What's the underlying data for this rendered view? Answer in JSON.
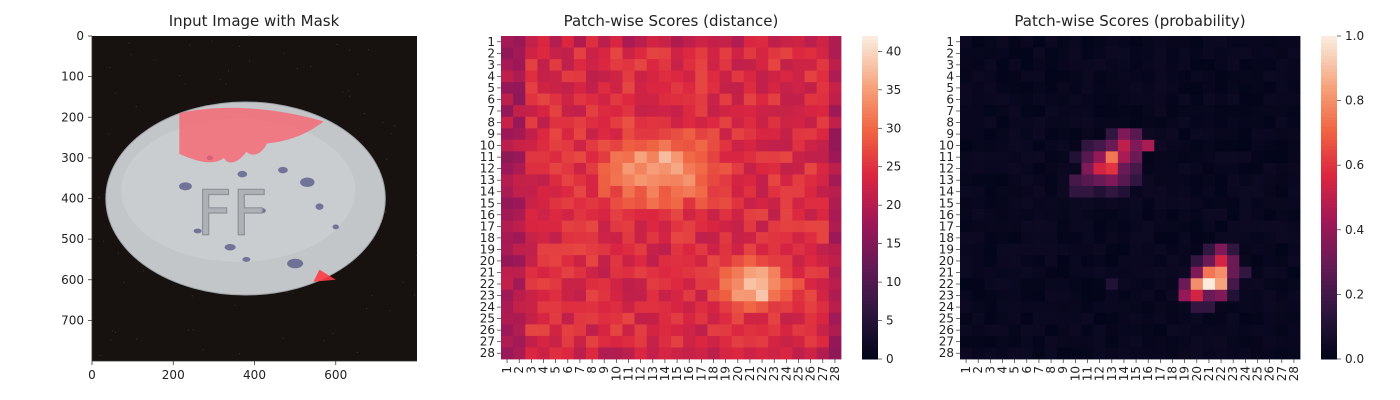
{
  "chart_data": [
    {
      "type": "image",
      "title": "Input Image with Mask",
      "x_ticks": [
        "0",
        "200",
        "400",
        "600"
      ],
      "y_ticks": [
        "0",
        "100",
        "200",
        "300",
        "400",
        "500",
        "600",
        "700"
      ],
      "x_tick_values": [
        0,
        200,
        400,
        600
      ],
      "y_tick_values": [
        0,
        100,
        200,
        300,
        400,
        500,
        600,
        700
      ],
      "xlim": [
        0,
        800
      ],
      "ylim": [
        800,
        0
      ],
      "stamp_text": "FF",
      "colors": {
        "background": "#17110f",
        "pill": "#c3c6c9",
        "mask": "#ff5a66"
      }
    },
    {
      "type": "heatmap",
      "title": "Patch-wise Scores (distance)",
      "rows": 28,
      "cols": 28,
      "row_labels": [
        "1",
        "2",
        "3",
        "4",
        "5",
        "6",
        "7",
        "8",
        "9",
        "10",
        "11",
        "12",
        "13",
        "14",
        "15",
        "16",
        "17",
        "18",
        "19",
        "20",
        "21",
        "22",
        "23",
        "24",
        "25",
        "26",
        "27",
        "28"
      ],
      "col_labels": [
        "1",
        "2",
        "3",
        "4",
        "5",
        "6",
        "7",
        "8",
        "9",
        "10",
        "11",
        "12",
        "13",
        "14",
        "15",
        "16",
        "17",
        "18",
        "19",
        "20",
        "21",
        "22",
        "23",
        "24",
        "25",
        "26",
        "27",
        "28"
      ],
      "colorbar": {
        "min": 0,
        "max": 42,
        "ticks": [
          "0",
          "5",
          "10",
          "15",
          "20",
          "25",
          "30",
          "35",
          "40"
        ],
        "tick_values": [
          0,
          5,
          10,
          15,
          20,
          25,
          30,
          35,
          40
        ],
        "colormap": "rocket"
      },
      "value_model": {
        "baseline": 24,
        "hotspots": [
          {
            "row": 12,
            "col": 13.5,
            "peak": 37,
            "spread_rows": 2.8,
            "spread_cols": 4.0
          },
          {
            "row": 22,
            "col": 21.5,
            "peak": 41,
            "spread_rows": 1.8,
            "spread_cols": 2.2
          }
        ],
        "cold_edges": {
          "left_cols": [
            1,
            2
          ],
          "right_col": 28,
          "value": 16
        }
      }
    },
    {
      "type": "heatmap",
      "title": "Patch-wise Scores (probability)",
      "rows": 28,
      "cols": 28,
      "row_labels": [
        "1",
        "2",
        "3",
        "4",
        "5",
        "6",
        "7",
        "8",
        "9",
        "10",
        "11",
        "12",
        "13",
        "14",
        "15",
        "16",
        "17",
        "18",
        "19",
        "20",
        "21",
        "22",
        "23",
        "24",
        "25",
        "26",
        "27",
        "28"
      ],
      "col_labels": [
        "1",
        "2",
        "3",
        "4",
        "5",
        "6",
        "7",
        "8",
        "9",
        "10",
        "11",
        "12",
        "13",
        "14",
        "15",
        "16",
        "17",
        "18",
        "19",
        "20",
        "21",
        "22",
        "23",
        "24",
        "25",
        "26",
        "27",
        "28"
      ],
      "colorbar": {
        "min": 0,
        "max": 1,
        "ticks": [
          "0.0",
          "0.2",
          "0.4",
          "0.6",
          "0.8",
          "1.0"
        ],
        "tick_values": [
          0,
          0.2,
          0.4,
          0.6,
          0.8,
          1.0
        ],
        "colormap": "rocket"
      },
      "cells": [
        {
          "r": 9,
          "c": 14,
          "v": 0.35
        },
        {
          "r": 9,
          "c": 15,
          "v": 0.25
        },
        {
          "r": 9,
          "c": 13,
          "v": 0.15
        },
        {
          "r": 10,
          "c": 12,
          "v": 0.2
        },
        {
          "r": 10,
          "c": 13,
          "v": 0.3
        },
        {
          "r": 10,
          "c": 14,
          "v": 0.5
        },
        {
          "r": 10,
          "c": 15,
          "v": 0.35
        },
        {
          "r": 10,
          "c": 16,
          "v": 0.45
        },
        {
          "r": 10,
          "c": 11,
          "v": 0.15
        },
        {
          "r": 11,
          "c": 11,
          "v": 0.25
        },
        {
          "r": 11,
          "c": 12,
          "v": 0.4
        },
        {
          "r": 11,
          "c": 13,
          "v": 0.75
        },
        {
          "r": 11,
          "c": 14,
          "v": 0.45
        },
        {
          "r": 11,
          "c": 15,
          "v": 0.3
        },
        {
          "r": 11,
          "c": 10,
          "v": 0.1
        },
        {
          "r": 12,
          "c": 11,
          "v": 0.35
        },
        {
          "r": 12,
          "c": 12,
          "v": 0.55
        },
        {
          "r": 12,
          "c": 13,
          "v": 0.6
        },
        {
          "r": 12,
          "c": 14,
          "v": 0.3
        },
        {
          "r": 12,
          "c": 15,
          "v": 0.2
        },
        {
          "r": 13,
          "c": 10,
          "v": 0.2
        },
        {
          "r": 13,
          "c": 11,
          "v": 0.25
        },
        {
          "r": 13,
          "c": 12,
          "v": 0.3
        },
        {
          "r": 13,
          "c": 13,
          "v": 0.35
        },
        {
          "r": 13,
          "c": 14,
          "v": 0.25
        },
        {
          "r": 13,
          "c": 15,
          "v": 0.15
        },
        {
          "r": 14,
          "c": 10,
          "v": 0.15
        },
        {
          "r": 14,
          "c": 11,
          "v": 0.15
        },
        {
          "r": 14,
          "c": 12,
          "v": 0.1
        },
        {
          "r": 14,
          "c": 13,
          "v": 0.15
        },
        {
          "r": 14,
          "c": 14,
          "v": 0.1
        },
        {
          "r": 19,
          "c": 22,
          "v": 0.35
        },
        {
          "r": 19,
          "c": 21,
          "v": 0.15
        },
        {
          "r": 19,
          "c": 23,
          "v": 0.15
        },
        {
          "r": 20,
          "c": 21,
          "v": 0.3
        },
        {
          "r": 20,
          "c": 22,
          "v": 0.55
        },
        {
          "r": 20,
          "c": 23,
          "v": 0.3
        },
        {
          "r": 20,
          "c": 20,
          "v": 0.15
        },
        {
          "r": 21,
          "c": 20,
          "v": 0.35
        },
        {
          "r": 21,
          "c": 21,
          "v": 0.75
        },
        {
          "r": 21,
          "c": 22,
          "v": 0.8
        },
        {
          "r": 21,
          "c": 23,
          "v": 0.3
        },
        {
          "r": 21,
          "c": 24,
          "v": 0.15
        },
        {
          "r": 22,
          "c": 19,
          "v": 0.3
        },
        {
          "r": 22,
          "c": 20,
          "v": 0.8
        },
        {
          "r": 22,
          "c": 21,
          "v": 1.0
        },
        {
          "r": 22,
          "c": 22,
          "v": 0.85
        },
        {
          "r": 22,
          "c": 23,
          "v": 0.2
        },
        {
          "r": 22,
          "c": 13,
          "v": 0.1
        },
        {
          "r": 23,
          "c": 19,
          "v": 0.4
        },
        {
          "r": 23,
          "c": 20,
          "v": 0.55
        },
        {
          "r": 23,
          "c": 21,
          "v": 0.3
        },
        {
          "r": 23,
          "c": 22,
          "v": 0.35
        },
        {
          "r": 23,
          "c": 23,
          "v": 0.1
        },
        {
          "r": 24,
          "c": 20,
          "v": 0.15
        },
        {
          "r": 24,
          "c": 21,
          "v": 0.15
        }
      ]
    }
  ]
}
